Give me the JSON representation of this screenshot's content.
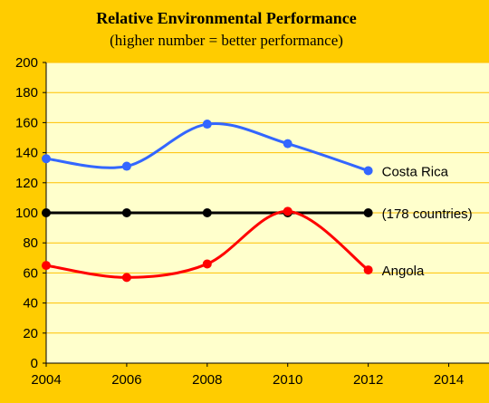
{
  "chart_data": {
    "type": "line",
    "title": "Relative Environmental Performance",
    "subtitle": "(higher  number = better performance)",
    "xlabel": "",
    "ylabel": "",
    "xlim": [
      2004,
      2015
    ],
    "ylim": [
      0,
      200
    ],
    "xticks": [
      2004,
      2006,
      2008,
      2010,
      2012,
      2014
    ],
    "yticks": [
      0,
      20,
      40,
      60,
      80,
      100,
      120,
      140,
      160,
      180,
      200
    ],
    "grid": "horizontal",
    "series": [
      {
        "name": "Costa Rica",
        "color": "#3366FF",
        "x": [
          2004,
          2006,
          2008,
          2010,
          2012
        ],
        "values": [
          136,
          131,
          159,
          146,
          128
        ]
      },
      {
        "name": "(178 countries)",
        "color": "#000000",
        "x": [
          2004,
          2006,
          2008,
          2010,
          2012
        ],
        "values": [
          100,
          100,
          100,
          100,
          100
        ]
      },
      {
        "name": "Angola",
        "color": "#FF0000",
        "x": [
          2004,
          2006,
          2008,
          2010,
          2012
        ],
        "values": [
          65,
          57,
          66,
          101,
          62
        ]
      }
    ]
  },
  "colors": {
    "background": "#FFCC00",
    "plot_area": "#FFFFCC",
    "gridline": "#FFC000"
  }
}
